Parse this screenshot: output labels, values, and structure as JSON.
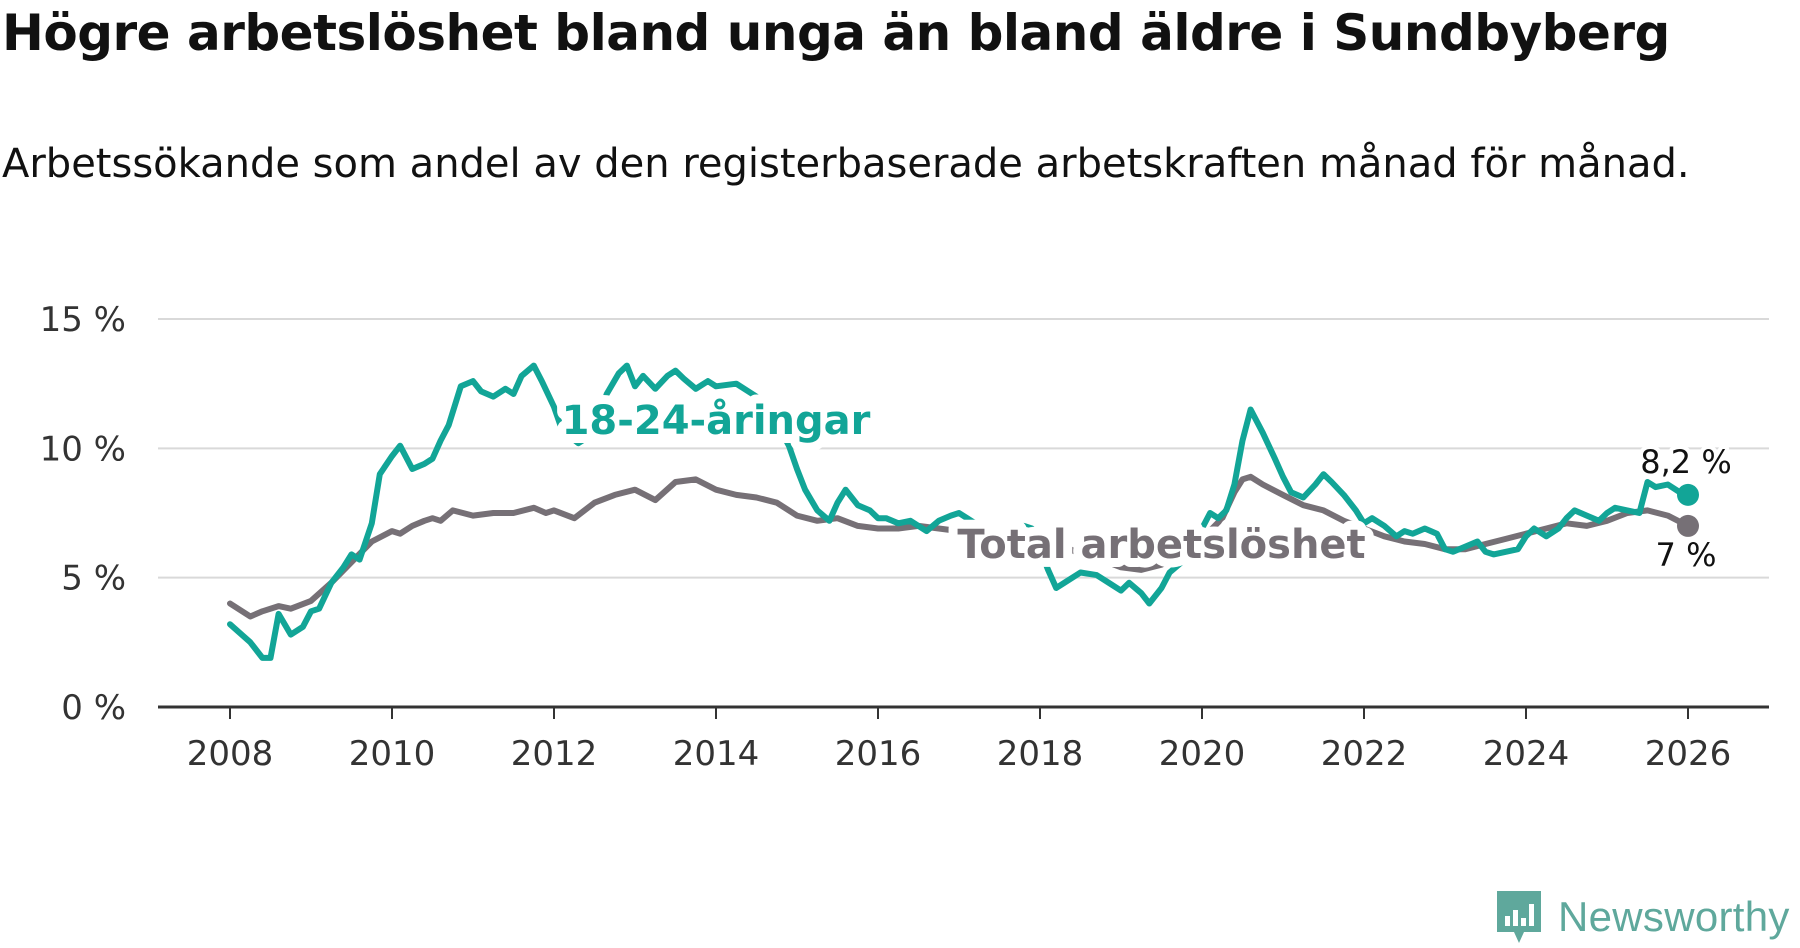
{
  "title": "Högre arbetslöshet bland unga än bland äldre i Sundbyberg",
  "subtitle": "Arbetssökande som andel av den registerbaserade arbetskraften månad för månad.",
  "brand": {
    "name": "Newsworthy",
    "icon": "newsworthy-logo-icon",
    "color": "#5fa89c"
  },
  "chart_data": {
    "type": "line",
    "xlabel": "",
    "ylabel": "",
    "xlim": [
      2007.1,
      2027.0
    ],
    "ylim": [
      0,
      15
    ],
    "grid": true,
    "x_ticks": [
      2008,
      2010,
      2012,
      2014,
      2016,
      2018,
      2020,
      2022,
      2024,
      2026
    ],
    "y_ticks": [
      0,
      5,
      10,
      15
    ],
    "y_tick_labels": [
      "0 %",
      "5 %",
      "10 %",
      "15 %"
    ],
    "series": [
      {
        "name": "18-24-åringar",
        "color": "#12a597",
        "end_label": "8,2 %",
        "end_label_position": "above",
        "x": [
          2008.0,
          2008.25,
          2008.4,
          2008.5,
          2008.6,
          2008.75,
          2008.9,
          2009.0,
          2009.1,
          2009.25,
          2009.4,
          2009.5,
          2009.6,
          2009.75,
          2009.85,
          2010.0,
          2010.1,
          2010.25,
          2010.4,
          2010.5,
          2010.6,
          2010.7,
          2010.85,
          2011.0,
          2011.1,
          2011.25,
          2011.4,
          2011.5,
          2011.6,
          2011.75,
          2011.85,
          2012.0,
          2012.1,
          2012.3,
          2012.5,
          2012.65,
          2012.8,
          2012.9,
          2013.0,
          2013.1,
          2013.25,
          2013.4,
          2013.5,
          2013.6,
          2013.75,
          2013.9,
          2014.0,
          2014.25,
          2014.5,
          2014.75,
          2014.9,
          2015.0,
          2015.1,
          2015.25,
          2015.4,
          2015.5,
          2015.6,
          2015.75,
          2015.9,
          2016.0,
          2016.1,
          2016.25,
          2016.4,
          2016.6,
          2016.75,
          2016.9,
          2017.0,
          2017.1,
          2017.3,
          2017.5,
          2017.65,
          2017.8,
          2017.9,
          2018.0,
          2018.1,
          2018.2,
          2018.3,
          2018.5,
          2018.7,
          2018.85,
          2019.0,
          2019.1,
          2019.25,
          2019.35,
          2019.5,
          2019.6,
          2019.75,
          2019.9,
          2020.0,
          2020.1,
          2020.2,
          2020.3,
          2020.4,
          2020.5,
          2020.6,
          2020.75,
          2020.9,
          2021.0,
          2021.1,
          2021.25,
          2021.4,
          2021.5,
          2021.6,
          2021.75,
          2021.9,
          2022.0,
          2022.1,
          2022.25,
          2022.4,
          2022.5,
          2022.6,
          2022.75,
          2022.9,
          2023.0,
          2023.1,
          2023.25,
          2023.4,
          2023.5,
          2023.6,
          2023.75,
          2023.9,
          2024.0,
          2024.1,
          2024.25,
          2024.4,
          2024.5,
          2024.6,
          2024.75,
          2024.9,
          2025.0,
          2025.1,
          2025.25,
          2025.4,
          2025.5,
          2025.6,
          2025.75,
          2025.9,
          2026.0
        ],
        "y": [
          3.2,
          2.5,
          1.9,
          1.9,
          3.6,
          2.8,
          3.1,
          3.7,
          3.8,
          4.8,
          5.4,
          5.9,
          5.7,
          7.1,
          9.0,
          9.7,
          10.1,
          9.2,
          9.4,
          9.6,
          10.3,
          10.9,
          12.4,
          12.6,
          12.2,
          12.0,
          12.3,
          12.1,
          12.8,
          13.2,
          12.6,
          11.6,
          10.7,
          10.2,
          10.6,
          12.1,
          12.9,
          13.2,
          12.4,
          12.8,
          12.3,
          12.8,
          13.0,
          12.7,
          12.3,
          12.6,
          12.4,
          12.5,
          12.0,
          11.0,
          10.1,
          9.2,
          8.4,
          7.6,
          7.2,
          7.9,
          8.4,
          7.8,
          7.6,
          7.3,
          7.3,
          7.1,
          7.2,
          6.8,
          7.2,
          7.4,
          7.5,
          7.3,
          6.9,
          6.4,
          6.5,
          7.0,
          6.9,
          6.1,
          5.3,
          4.6,
          4.8,
          5.2,
          5.1,
          4.8,
          4.5,
          4.8,
          4.4,
          4.0,
          4.6,
          5.2,
          5.6,
          6.2,
          6.9,
          7.5,
          7.3,
          7.6,
          8.6,
          10.3,
          11.5,
          10.6,
          9.6,
          8.9,
          8.3,
          8.1,
          8.6,
          9.0,
          8.7,
          8.2,
          7.6,
          7.1,
          7.3,
          7.0,
          6.6,
          6.8,
          6.7,
          6.9,
          6.7,
          6.1,
          6.0,
          6.2,
          6.4,
          6.0,
          5.9,
          6.0,
          6.1,
          6.6,
          6.9,
          6.6,
          6.9,
          7.3,
          7.6,
          7.4,
          7.2,
          7.5,
          7.7,
          7.6,
          7.5,
          8.7,
          8.5,
          8.6,
          8.3,
          8.2
        ]
      },
      {
        "name": "Total arbetslöshet",
        "color": "#767076",
        "end_label": "7 %",
        "end_label_position": "below",
        "x": [
          2008.0,
          2008.25,
          2008.4,
          2008.6,
          2008.75,
          2009.0,
          2009.25,
          2009.5,
          2009.75,
          2010.0,
          2010.1,
          2010.25,
          2010.4,
          2010.5,
          2010.6,
          2010.75,
          2011.0,
          2011.25,
          2011.5,
          2011.75,
          2011.9,
          2012.0,
          2012.25,
          2012.5,
          2012.75,
          2013.0,
          2013.25,
          2013.5,
          2013.75,
          2014.0,
          2014.25,
          2014.5,
          2014.75,
          2015.0,
          2015.25,
          2015.5,
          2015.75,
          2016.0,
          2016.25,
          2016.5,
          2016.75,
          2017.0,
          2017.25,
          2017.5,
          2017.75,
          2018.0,
          2018.25,
          2018.5,
          2018.75,
          2019.0,
          2019.25,
          2019.5,
          2019.75,
          2020.0,
          2020.25,
          2020.4,
          2020.5,
          2020.6,
          2020.75,
          2021.0,
          2021.25,
          2021.5,
          2021.75,
          2022.0,
          2022.25,
          2022.5,
          2022.75,
          2023.0,
          2023.25,
          2023.5,
          2023.75,
          2024.0,
          2024.25,
          2024.5,
          2024.75,
          2025.0,
          2025.25,
          2025.5,
          2025.75,
          2026.0
        ],
        "y": [
          4.0,
          3.5,
          3.7,
          3.9,
          3.8,
          4.1,
          4.8,
          5.6,
          6.4,
          6.8,
          6.7,
          7.0,
          7.2,
          7.3,
          7.2,
          7.6,
          7.4,
          7.5,
          7.5,
          7.7,
          7.5,
          7.6,
          7.3,
          7.9,
          8.2,
          8.4,
          8.0,
          8.7,
          8.8,
          8.4,
          8.2,
          8.1,
          7.9,
          7.4,
          7.2,
          7.3,
          7.0,
          6.9,
          6.9,
          7.0,
          6.9,
          6.8,
          6.5,
          6.4,
          6.5,
          6.4,
          6.3,
          5.9,
          5.7,
          5.4,
          5.3,
          5.5,
          5.9,
          6.5,
          7.3,
          8.3,
          8.8,
          8.9,
          8.6,
          8.2,
          7.8,
          7.6,
          7.2,
          6.9,
          6.6,
          6.4,
          6.3,
          6.1,
          6.1,
          6.3,
          6.5,
          6.7,
          6.9,
          7.1,
          7.0,
          7.2,
          7.5,
          7.6,
          7.4,
          7.0
        ]
      }
    ],
    "annotations": [
      {
        "text": "18-24-åringar",
        "series": "18-24-åringar",
        "x": 2014.0,
        "y": 11.1
      },
      {
        "text": "Total arbetslöshet",
        "series": "Total arbetslöshet",
        "x": 2019.5,
        "y": 6.3
      }
    ]
  }
}
